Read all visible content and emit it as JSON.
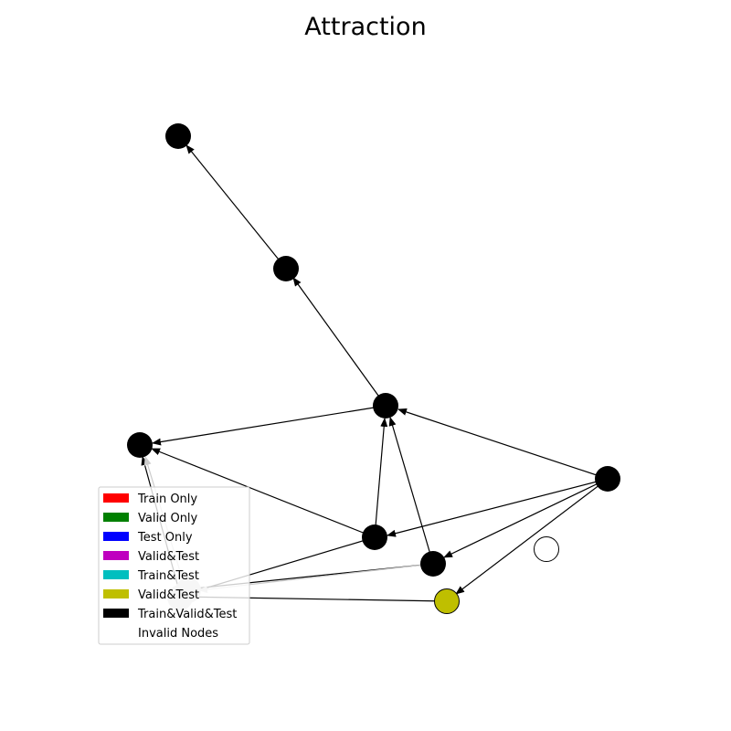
{
  "title": "Attraction",
  "legend": [
    {
      "label": "Train Only",
      "color": "#ff0000"
    },
    {
      "label": "Valid Only",
      "color": "#008000"
    },
    {
      "label": "Test Only",
      "color": "#0000ff"
    },
    {
      "label": "Valid&Test",
      "color": "#bf00bf"
    },
    {
      "label": "Train&Test",
      "color": "#00bfbf"
    },
    {
      "label": "Valid&Test",
      "color": "#bfbf00"
    },
    {
      "label": "Train&Valid&Test",
      "color": "#000000"
    },
    {
      "label": "Invalid Nodes",
      "color": "#ffffff"
    }
  ],
  "colors": {
    "edge": "#000000",
    "faded_edge": "#cccccc",
    "faded_node": "#d3d3d3"
  }
}
